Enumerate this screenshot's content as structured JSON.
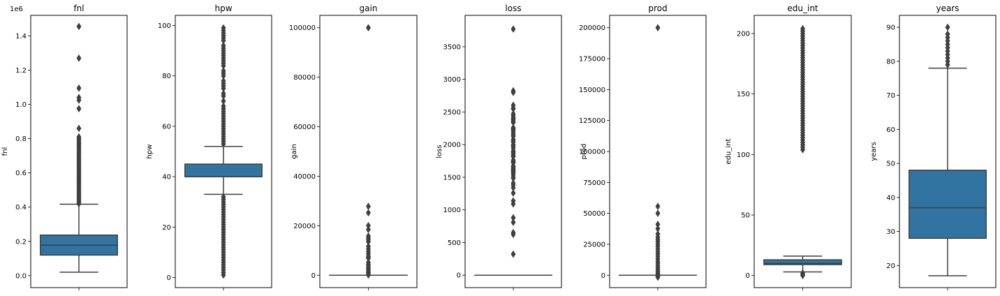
{
  "chart_data": [
    {
      "type": "box",
      "title": "fnl",
      "ylabel": "fnl",
      "offset_label": "1e6",
      "ylim": [
        -0.07,
        1.52
      ],
      "yticks": [
        0.0,
        0.2,
        0.4,
        0.6,
        0.8,
        1.0,
        1.2,
        1.4
      ],
      "ytick_labels": [
        "0.0",
        "0.2",
        "0.4",
        "0.6",
        "0.8",
        "1.0",
        "1.2",
        "1.4"
      ],
      "box": {
        "whisker_low": 0.02,
        "q1": 0.12,
        "median": 0.178,
        "q3": 0.237,
        "whisker_high": 0.417,
        "color": "#3274a1"
      },
      "outliers": [
        1.455,
        1.27,
        1.095,
        1.04,
        1.025,
        0.975,
        0.86,
        0.81,
        0.8,
        0.79,
        0.78,
        0.77,
        0.76,
        0.75,
        0.74,
        0.73,
        0.72,
        0.71,
        0.7,
        0.69,
        0.68,
        0.67,
        0.66,
        0.65,
        0.64,
        0.63,
        0.62,
        0.61,
        0.6,
        0.59,
        0.58,
        0.57,
        0.56,
        0.55,
        0.54,
        0.53,
        0.52,
        0.51,
        0.5,
        0.49,
        0.48,
        0.47,
        0.46,
        0.45,
        0.44,
        0.43,
        0.42
      ]
    },
    {
      "type": "box",
      "title": "hpw",
      "ylabel": "hpw",
      "ylim": [
        -4,
        104
      ],
      "yticks": [
        0,
        20,
        40,
        60,
        80,
        100
      ],
      "ytick_labels": [
        "0",
        "20",
        "40",
        "60",
        "80",
        "100"
      ],
      "box": {
        "whisker_low": 33,
        "q1": 40,
        "median": 40,
        "q3": 45,
        "whisker_high": 52,
        "color": "#3274a1"
      },
      "outliers": [
        1,
        2,
        3,
        4,
        5,
        6,
        7,
        8,
        9,
        10,
        11,
        12,
        13,
        14,
        15,
        16,
        17,
        18,
        19,
        20,
        21,
        22,
        23,
        24,
        25,
        26,
        27,
        28,
        29,
        30,
        31,
        32,
        53,
        54,
        55,
        56,
        57,
        58,
        59,
        60,
        61,
        62,
        63,
        64,
        65,
        66,
        67,
        68,
        70,
        72,
        73,
        75,
        76,
        77,
        78,
        80,
        81,
        82,
        84,
        85,
        86,
        87,
        88,
        89,
        90,
        91,
        92,
        94,
        95,
        96,
        97,
        98,
        99
      ]
    },
    {
      "type": "box",
      "title": "gain",
      "ylabel": "gain",
      "ylim": [
        -5000,
        105000
      ],
      "yticks": [
        0,
        20000,
        40000,
        60000,
        80000,
        100000
      ],
      "ytick_labels": [
        "0",
        "20000",
        "40000",
        "60000",
        "80000",
        "100000"
      ],
      "box": {
        "whisker_low": 0,
        "q1": 0,
        "median": 0,
        "q3": 0,
        "whisker_high": 0,
        "color": "#3274a1"
      },
      "outliers": [
        99999,
        27828,
        25236,
        20051,
        18481,
        15831,
        15024,
        14344,
        13550,
        11678,
        10605,
        9562,
        8614,
        7688,
        7298,
        6849,
        5178,
        4386,
        3908,
        3103,
        2829,
        2174,
        1506,
        1055,
        594,
        114
      ]
    },
    {
      "type": "box",
      "title": "loss",
      "ylabel": "loss",
      "ylim": [
        -190,
        3980
      ],
      "yticks": [
        0,
        500,
        1000,
        1500,
        2000,
        2500,
        3000,
        3500
      ],
      "ytick_labels": [
        "0",
        "500",
        "1000",
        "1500",
        "2000",
        "2500",
        "3000",
        "3500"
      ],
      "box": {
        "whisker_low": 0,
        "q1": 0,
        "median": 0,
        "q3": 0,
        "whisker_high": 0,
        "color": "#3274a1"
      },
      "outliers": [
        3770,
        2824,
        2800,
        2603,
        2559,
        2547,
        2472,
        2444,
        2415,
        2392,
        2377,
        2352,
        2339,
        2258,
        2246,
        2231,
        2206,
        2179,
        2149,
        2129,
        2080,
        2057,
        2042,
        2001,
        1980,
        1977,
        1944,
        1902,
        1887,
        1876,
        1848,
        1825,
        1816,
        1762,
        1741,
        1740,
        1735,
        1721,
        1672,
        1669,
        1651,
        1628,
        1617,
        1602,
        1594,
        1579,
        1564,
        1539,
        1504,
        1485,
        1411,
        1380,
        1340,
        1258,
        1138,
        1092,
        880,
        810,
        653,
        625,
        323
      ]
    },
    {
      "type": "box",
      "title": "prod",
      "ylabel": "prod",
      "ylim": [
        -10000,
        210000
      ],
      "yticks": [
        0,
        25000,
        50000,
        75000,
        100000,
        125000,
        150000,
        175000,
        200000
      ],
      "ytick_labels": [
        "0",
        "25000",
        "50000",
        "75000",
        "100000",
        "125000",
        "150000",
        "175000",
        "200000"
      ],
      "box": {
        "whisker_low": 0,
        "q1": 0,
        "median": 0,
        "q3": 0,
        "whisker_high": 0,
        "color": "#3274a1"
      },
      "outliers": [
        199998,
        55656,
        50040,
        41112,
        37584,
        33376,
        30704,
        28688,
        27100,
        25236,
        23352,
        21210,
        19124,
        17220,
        15360,
        13200,
        11200,
        9600,
        7800,
        6200,
        4600,
        3100,
        1700,
        600,
        -900,
        -1600
      ]
    },
    {
      "type": "box",
      "title": "edu_int",
      "ylabel": "edu_int",
      "ylim": [
        -10,
        215
      ],
      "yticks": [
        0,
        50,
        100,
        150,
        200
      ],
      "ytick_labels": [
        "0",
        "50",
        "100",
        "150",
        "200"
      ],
      "box": {
        "whisker_low": 3,
        "q1": 9,
        "median": 10,
        "q3": 13,
        "whisker_high": 16,
        "color": "#3274a1"
      },
      "outliers": [
        0,
        1,
        2,
        104,
        106,
        108,
        110,
        112,
        114,
        116,
        118,
        120,
        122,
        124,
        126,
        128,
        130,
        132,
        134,
        136,
        138,
        140,
        142,
        144,
        146,
        148,
        150,
        152,
        154,
        156,
        158,
        160,
        162,
        164,
        166,
        168,
        170,
        172,
        174,
        176,
        178,
        180,
        182,
        184,
        186,
        188,
        190,
        192,
        194,
        196,
        198,
        200,
        202,
        204
      ]
    },
    {
      "type": "box",
      "title": "years",
      "ylabel": "years",
      "ylim": [
        13.5,
        93.5
      ],
      "yticks": [
        20,
        30,
        40,
        50,
        60,
        70,
        80,
        90
      ],
      "ytick_labels": [
        "20",
        "30",
        "40",
        "50",
        "60",
        "70",
        "80",
        "90"
      ],
      "box": {
        "whisker_low": 17,
        "q1": 28,
        "median": 37,
        "q3": 48,
        "whisker_high": 78,
        "color": "#3274a1"
      },
      "outliers": [
        79,
        80,
        81,
        82,
        83,
        84,
        85,
        86,
        87,
        88,
        90
      ]
    }
  ]
}
